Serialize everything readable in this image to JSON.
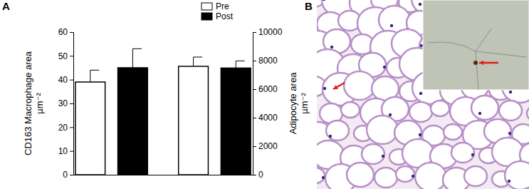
{
  "chart_data": {
    "type": "bar",
    "title": "A",
    "categories": [
      null,
      null
    ],
    "series": [
      {
        "name": "Pre",
        "color": "#ffffff",
        "values": [
          39,
          null
        ],
        "errors": [
          5,
          null
        ]
      },
      {
        "name": "Post",
        "color": "#000000",
        "values": [
          45,
          null
        ],
        "errors": [
          8,
          null
        ]
      },
      {
        "color": "#ffffff",
        "axis": "y2",
        "values": [
          null,
          7600
        ],
        "errors": [
          null,
          650
        ]
      },
      {
        "color": "#000000",
        "axis": "y2",
        "values": [
          null,
          7480
        ],
        "errors": [
          null,
          500
        ]
      }
    ],
    "ylabel": [
      "CD163 Macrophage area",
      "µm⁻²"
    ],
    "y2label": [
      "Adipocyte area",
      "µm⁻²"
    ],
    "ylim": [
      0,
      60
    ],
    "yticks": [
      0,
      10,
      20,
      30,
      40,
      50,
      60
    ],
    "y2lim": [
      0,
      10000
    ],
    "y2ticks": [
      0,
      2000,
      4000,
      6000,
      8000,
      10000
    ],
    "grid": false
  },
  "image": {
    "label": "B"
  }
}
